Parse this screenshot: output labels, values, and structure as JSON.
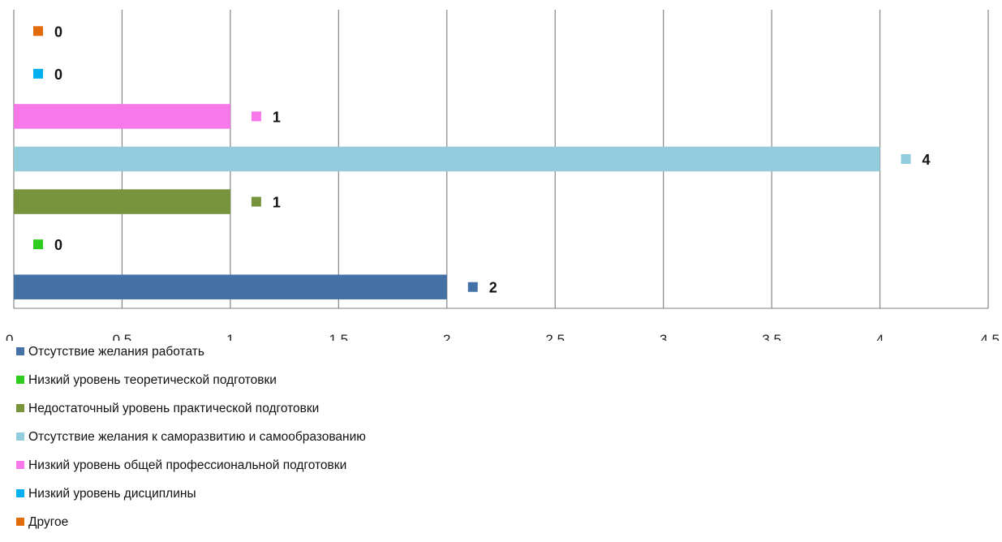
{
  "chart_data": {
    "type": "bar",
    "orientation": "horizontal",
    "x_ticks": [
      "0",
      "0,5",
      "1",
      "1,5",
      "2",
      "2,5",
      "3",
      "3,5",
      "4",
      "4,5"
    ],
    "xlim": [
      0,
      4.5
    ],
    "grid": true,
    "legend_position": "bottom",
    "series": [
      {
        "name": "Отсутствие желания работать",
        "value": 2,
        "label": "2",
        "color": "#4472a6"
      },
      {
        "name": "Низкий уровень теоретической подготовки",
        "value": 0,
        "label": "0",
        "color": "#2ecc1f"
      },
      {
        "name": "Недостаточный уровень практической подготовки",
        "value": 1,
        "label": "1",
        "color": "#77933c"
      },
      {
        "name": "Отсутствие желания к саморазвитию и самообразованию",
        "value": 4,
        "label": "4",
        "color": "#93cddd"
      },
      {
        "name": "Низкий уровень общей профессиональной подготовки",
        "value": 1,
        "label": "1",
        "color": "#f778e8"
      },
      {
        "name": "Низкий уровень дисциплины",
        "value": 0,
        "label": "0",
        "color": "#00b0f0"
      },
      {
        "name": "Другое",
        "value": 0,
        "label": "0",
        "color": "#e36c0a"
      }
    ]
  }
}
